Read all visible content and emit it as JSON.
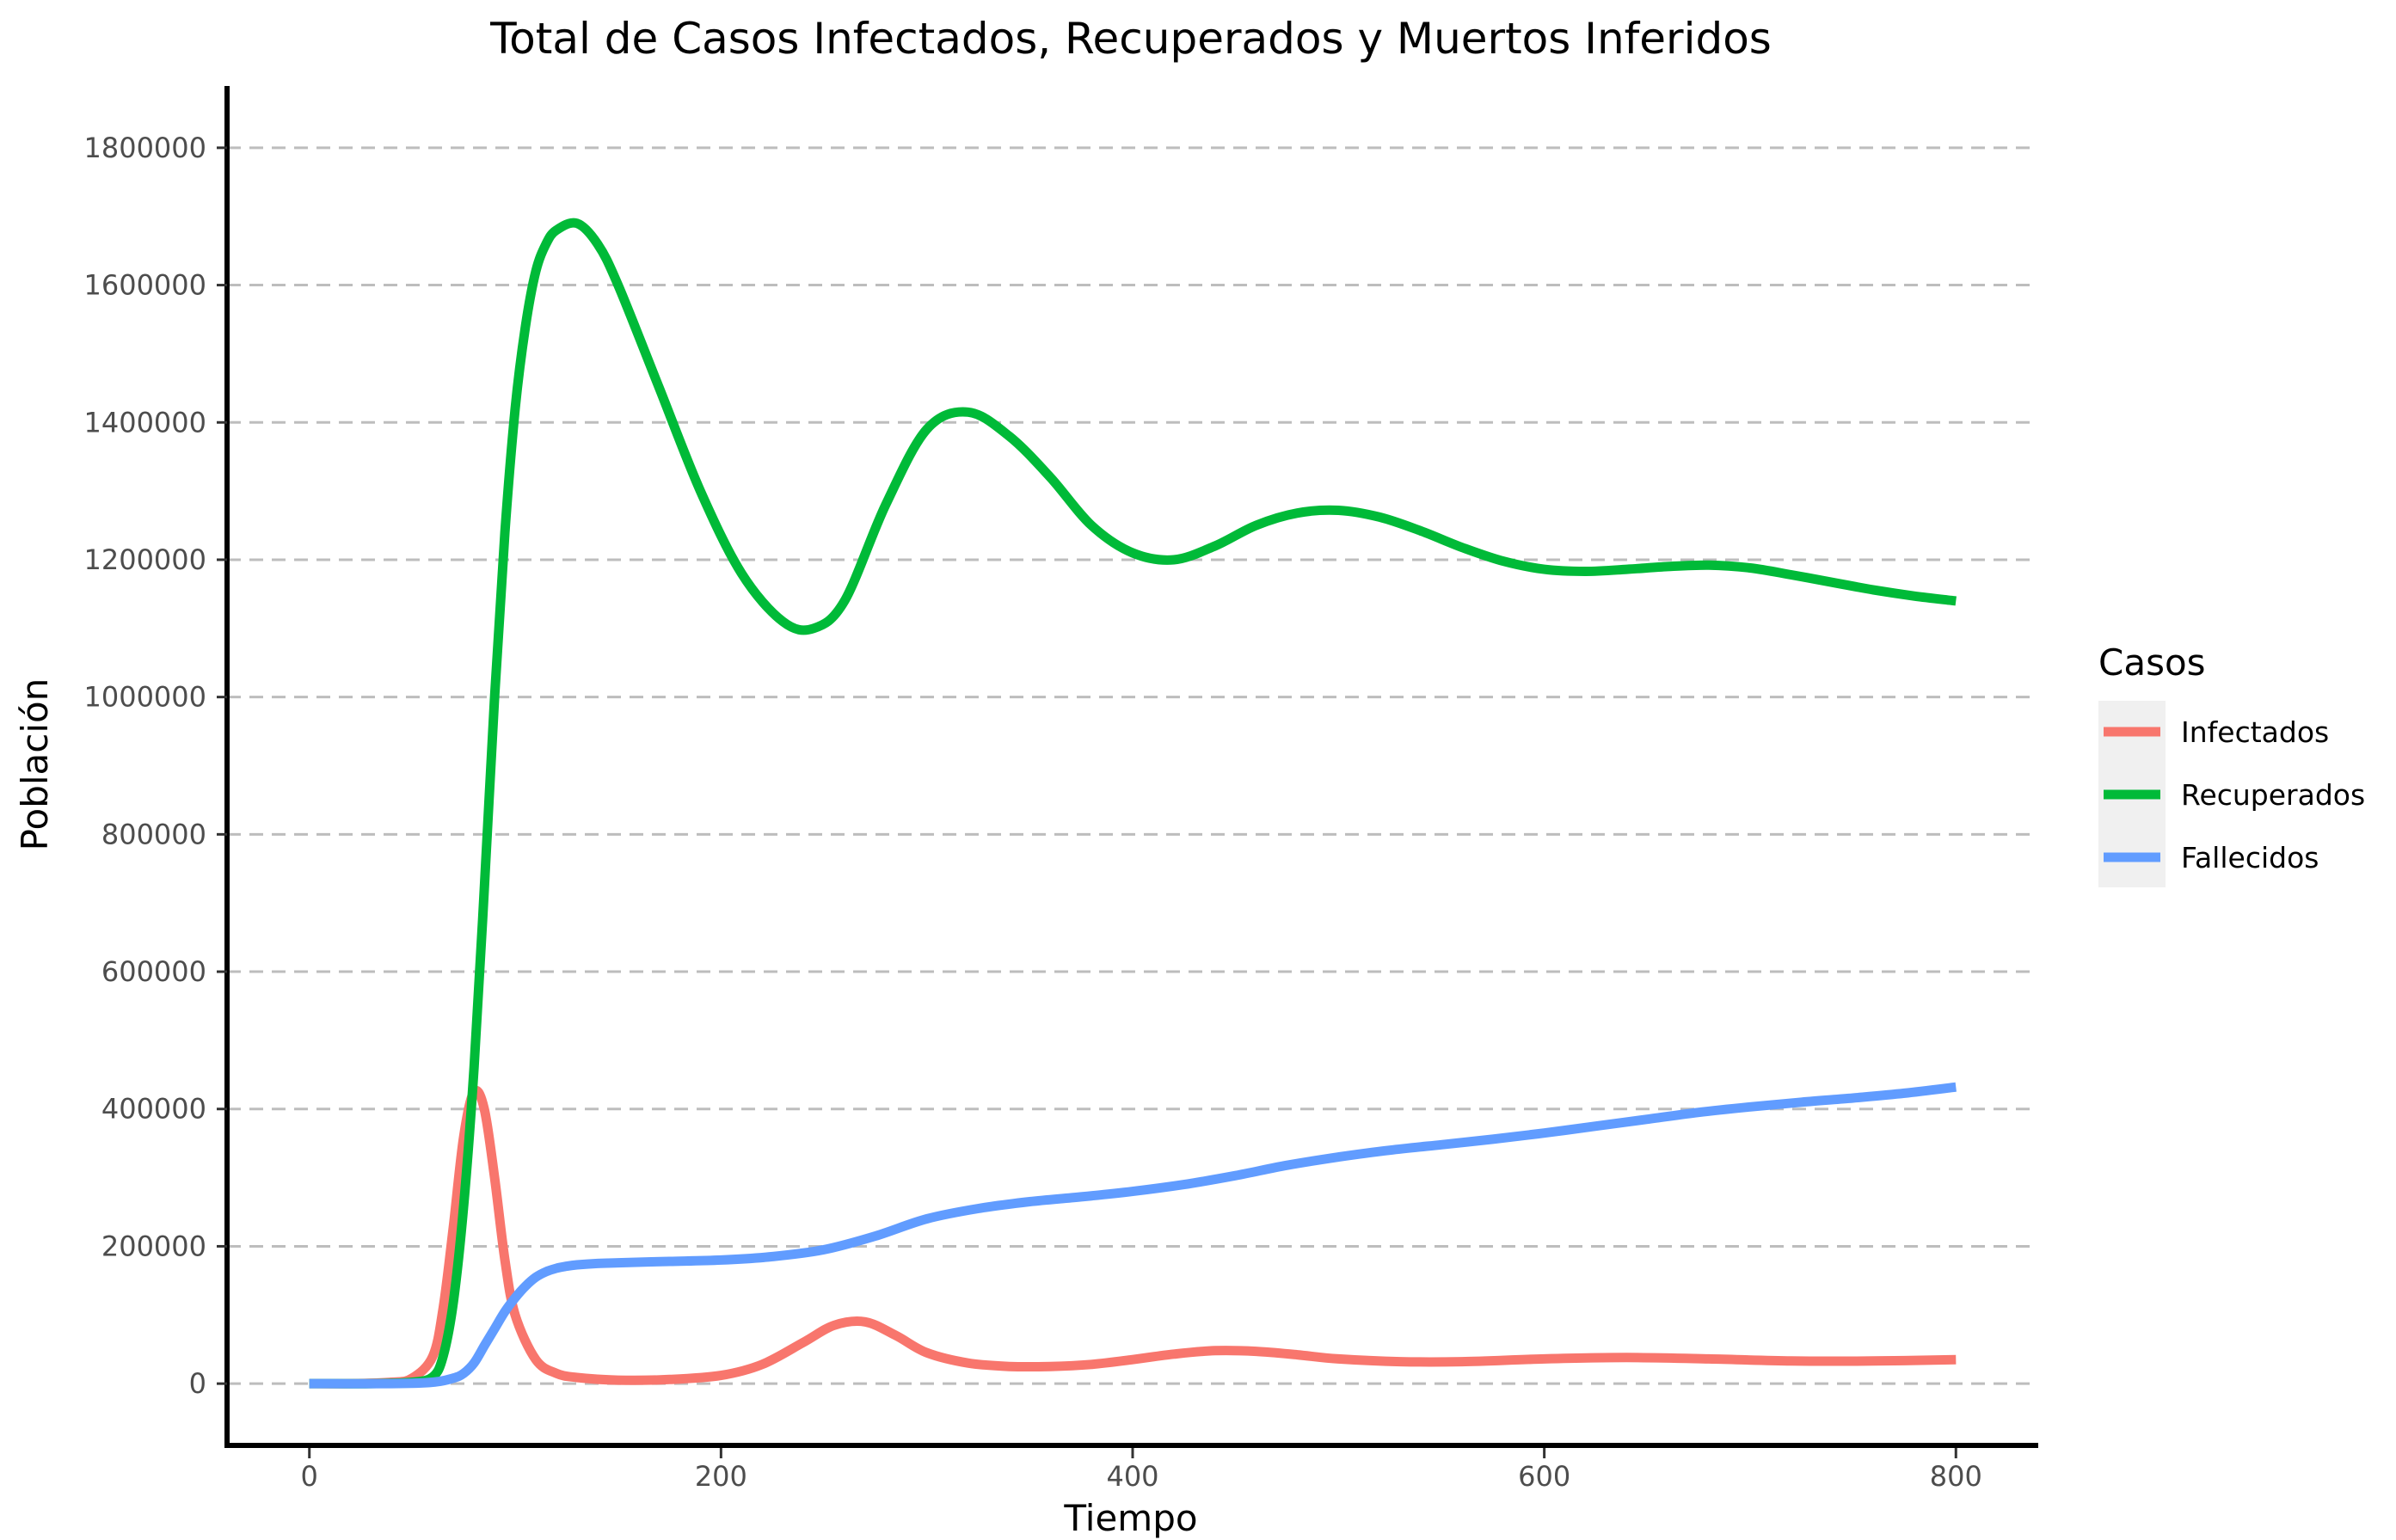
{
  "chart_data": {
    "type": "line",
    "title": "Total de Casos Infectados, Recuperados y Muertos Inferidos",
    "xlabel": "Tiempo",
    "ylabel": "Población",
    "xlim": [
      -40,
      840
    ],
    "ylim": [
      -90000,
      1890000
    ],
    "xticks": [
      0,
      200,
      400,
      600,
      800
    ],
    "xtick_labels": [
      "0",
      "200",
      "400",
      "600",
      "800"
    ],
    "yticks": [
      0,
      200000,
      400000,
      600000,
      800000,
      1000000,
      1200000,
      1400000,
      1600000,
      1800000
    ],
    "ytick_labels": [
      "0",
      "200000",
      "400000",
      "600000",
      "800000",
      "1000000",
      "1200000",
      "1400000",
      "1600000",
      "1800000"
    ],
    "grid": "horizontal-dashed",
    "legend": {
      "title": "Casos",
      "position": "right"
    },
    "series": [
      {
        "name": "Infectados",
        "color": "#F8766D",
        "x": [
          0,
          20,
          40,
          50,
          60,
          65,
          70,
          75,
          80,
          85,
          90,
          95,
          100,
          110,
          120,
          130,
          150,
          175,
          200,
          220,
          240,
          255,
          270,
          285,
          300,
          320,
          340,
          360,
          380,
          400,
          420,
          440,
          460,
          480,
          500,
          530,
          560,
          600,
          640,
          680,
          720,
          760,
          800
        ],
        "y": [
          0,
          0,
          2000,
          8000,
          40000,
          110000,
          230000,
          360000,
          425000,
          400000,
          300000,
          180000,
          100000,
          35000,
          15000,
          9000,
          5000,
          6000,
          12000,
          28000,
          60000,
          85000,
          90000,
          70000,
          45000,
          30000,
          25000,
          25000,
          28000,
          35000,
          43000,
          48000,
          47000,
          42000,
          36000,
          32000,
          32000,
          36000,
          38000,
          36000,
          33000,
          33000,
          35000
        ]
      },
      {
        "name": "Recuperados",
        "color": "#00BA38",
        "x": [
          0,
          30,
          50,
          60,
          65,
          70,
          75,
          80,
          85,
          90,
          95,
          100,
          105,
          110,
          115,
          120,
          130,
          140,
          150,
          170,
          190,
          210,
          230,
          245,
          260,
          280,
          300,
          320,
          340,
          360,
          380,
          400,
          420,
          440,
          460,
          480,
          500,
          520,
          540,
          560,
          580,
          600,
          620,
          640,
          660,
          680,
          700,
          720,
          740,
          760,
          780,
          800
        ],
        "y": [
          0,
          0,
          2000,
          10000,
          40000,
          120000,
          260000,
          460000,
          720000,
          1000000,
          1240000,
          1420000,
          1540000,
          1620000,
          1660000,
          1680000,
          1690000,
          1660000,
          1600000,
          1450000,
          1300000,
          1180000,
          1110000,
          1100000,
          1140000,
          1280000,
          1390000,
          1415000,
          1380000,
          1320000,
          1250000,
          1210000,
          1200000,
          1220000,
          1250000,
          1268000,
          1272000,
          1262000,
          1242000,
          1218000,
          1198000,
          1186000,
          1183000,
          1186000,
          1190000,
          1192000,
          1188000,
          1178000,
          1167000,
          1156000,
          1147000,
          1140000
        ]
      },
      {
        "name": "Fallecidos",
        "color": "#619CFF",
        "x": [
          0,
          40,
          60,
          70,
          75,
          80,
          85,
          90,
          95,
          100,
          105,
          110,
          115,
          120,
          125,
          130,
          140,
          150,
          175,
          200,
          225,
          250,
          275,
          300,
          325,
          350,
          375,
          400,
          425,
          450,
          475,
          500,
          525,
          550,
          575,
          600,
          625,
          650,
          675,
          700,
          725,
          750,
          775,
          800
        ],
        "y": [
          0,
          0,
          2000,
          8000,
          15000,
          30000,
          55000,
          80000,
          105000,
          125000,
          142000,
          155000,
          163000,
          168000,
          171000,
          173000,
          175000,
          176000,
          178000,
          180000,
          185000,
          195000,
          215000,
          240000,
          255000,
          265000,
          272000,
          280000,
          290000,
          303000,
          318000,
          330000,
          340000,
          348000,
          356000,
          365000,
          375000,
          385000,
          395000,
          403000,
          410000,
          416000,
          423000,
          432000
        ]
      }
    ]
  }
}
